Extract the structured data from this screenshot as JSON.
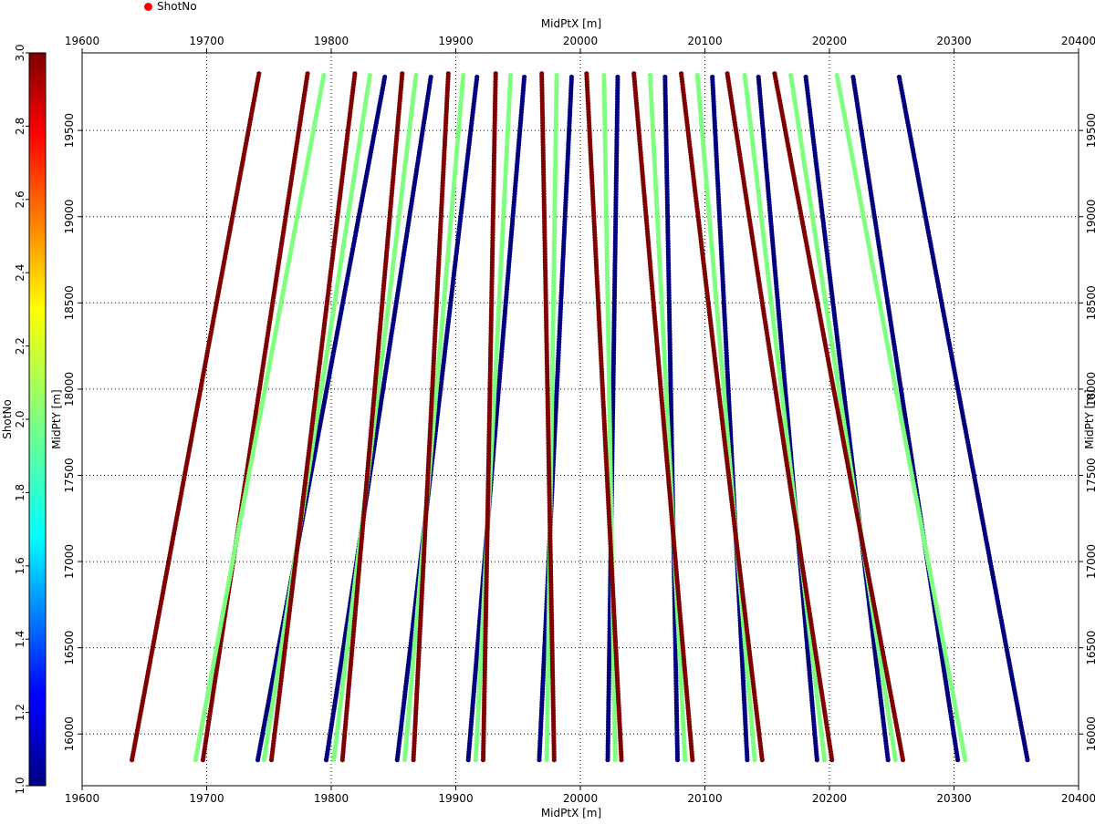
{
  "legend": {
    "label": "ShotNo",
    "marker_color": "#ff0000"
  },
  "chart_data": {
    "type": "scatter",
    "xlabel_top": "MidPtX [m]",
    "xlabel_bottom": "MidPtX [m]",
    "ylabel_left": "MidPtY [m]",
    "ylabel_right": "MidPtY [m]",
    "xlim": [
      19600,
      20400
    ],
    "ylim": [
      15700,
      19950
    ],
    "x_ticks": [
      "19600",
      "19700",
      "19800",
      "19900",
      "20000",
      "20100",
      "20200",
      "20300",
      "20400"
    ],
    "y_ticks": [
      "16000",
      "16500",
      "17000",
      "17500",
      "18000",
      "18500",
      "19000",
      "19500"
    ],
    "grid": true,
    "colorbar": {
      "label": "ShotNo",
      "range": [
        1.0,
        3.0
      ],
      "ticks": [
        "1.0",
        "1.2",
        "1.4",
        "1.6",
        "1.8",
        "2.0",
        "2.2",
        "2.4",
        "2.6",
        "2.8",
        "3.0"
      ],
      "colormap": "jet"
    },
    "series_colors": {
      "1": "#00007f",
      "2": "#7fff7f",
      "3": "#7f0000"
    },
    "series": [
      {
        "shot": 3,
        "start": [
          19640,
          15850
        ],
        "end": [
          19742,
          19830
        ]
      },
      {
        "shot": 3,
        "start": [
          19697,
          15850
        ],
        "end": [
          19781,
          19830
        ]
      },
      {
        "shot": 2,
        "start": [
          19691,
          15850
        ],
        "end": [
          19794,
          19820
        ]
      },
      {
        "shot": 1,
        "start": [
          19741,
          15850
        ],
        "end": [
          19843,
          19810
        ]
      },
      {
        "shot": 2,
        "start": [
          19746,
          15850
        ],
        "end": [
          19831,
          19820
        ]
      },
      {
        "shot": 3,
        "start": [
          19752,
          15850
        ],
        "end": [
          19819,
          19830
        ]
      },
      {
        "shot": 1,
        "start": [
          19796,
          15850
        ],
        "end": [
          19880,
          19810
        ]
      },
      {
        "shot": 2,
        "start": [
          19802,
          15850
        ],
        "end": [
          19868,
          19820
        ]
      },
      {
        "shot": 3,
        "start": [
          19809,
          15850
        ],
        "end": [
          19857,
          19830
        ]
      },
      {
        "shot": 1,
        "start": [
          19853,
          15850
        ],
        "end": [
          19917,
          19810
        ]
      },
      {
        "shot": 2,
        "start": [
          19859,
          15850
        ],
        "end": [
          19906,
          19820
        ]
      },
      {
        "shot": 3,
        "start": [
          19866,
          15850
        ],
        "end": [
          19894,
          19830
        ]
      },
      {
        "shot": 1,
        "start": [
          19910,
          15850
        ],
        "end": [
          19955,
          19810
        ]
      },
      {
        "shot": 2,
        "start": [
          19916,
          15850
        ],
        "end": [
          19944,
          19820
        ]
      },
      {
        "shot": 3,
        "start": [
          19922,
          15850
        ],
        "end": [
          19932,
          19830
        ]
      },
      {
        "shot": 1,
        "start": [
          19967,
          15850
        ],
        "end": [
          19993,
          19810
        ]
      },
      {
        "shot": 2,
        "start": [
          19973,
          15850
        ],
        "end": [
          19981,
          19820
        ]
      },
      {
        "shot": 3,
        "start": [
          19979,
          15850
        ],
        "end": [
          19969,
          19830
        ]
      },
      {
        "shot": 1,
        "start": [
          20022,
          15850
        ],
        "end": [
          20030,
          19810
        ]
      },
      {
        "shot": 2,
        "start": [
          20028,
          15850
        ],
        "end": [
          20019,
          19820
        ]
      },
      {
        "shot": 3,
        "start": [
          20033,
          15850
        ],
        "end": [
          20005,
          19830
        ]
      },
      {
        "shot": 1,
        "start": [
          20078,
          15850
        ],
        "end": [
          20068,
          19810
        ]
      },
      {
        "shot": 2,
        "start": [
          20084,
          15850
        ],
        "end": [
          20056,
          19820
        ]
      },
      {
        "shot": 3,
        "start": [
          20090,
          15850
        ],
        "end": [
          20043,
          19830
        ]
      },
      {
        "shot": 1,
        "start": [
          20134,
          15850
        ],
        "end": [
          20106,
          19810
        ]
      },
      {
        "shot": 2,
        "start": [
          20140,
          15850
        ],
        "end": [
          20094,
          19820
        ]
      },
      {
        "shot": 3,
        "start": [
          20146,
          15850
        ],
        "end": [
          20081,
          19830
        ]
      },
      {
        "shot": 1,
        "start": [
          20190,
          15850
        ],
        "end": [
          20143,
          19810
        ]
      },
      {
        "shot": 2,
        "start": [
          20196,
          15850
        ],
        "end": [
          20132,
          19820
        ]
      },
      {
        "shot": 3,
        "start": [
          20202,
          15850
        ],
        "end": [
          20118,
          19830
        ]
      },
      {
        "shot": 1,
        "start": [
          20247,
          15850
        ],
        "end": [
          20181,
          19810
        ]
      },
      {
        "shot": 2,
        "start": [
          20253,
          15850
        ],
        "end": [
          20169,
          19820
        ]
      },
      {
        "shot": 3,
        "start": [
          20259,
          15850
        ],
        "end": [
          20156,
          19830
        ]
      },
      {
        "shot": 1,
        "start": [
          20303,
          15850
        ],
        "end": [
          20219,
          19810
        ]
      },
      {
        "shot": 2,
        "start": [
          20309,
          15850
        ],
        "end": [
          20206,
          19820
        ]
      },
      {
        "shot": 1,
        "start": [
          20359,
          15850
        ],
        "end": [
          20256,
          19810
        ]
      }
    ]
  }
}
